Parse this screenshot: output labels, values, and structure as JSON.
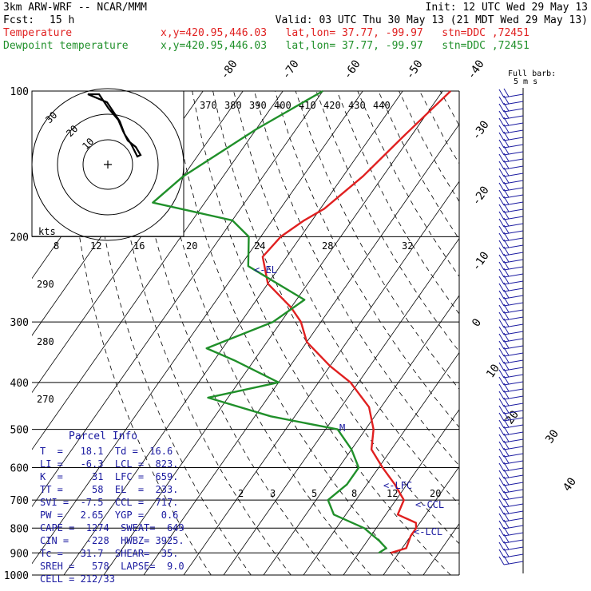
{
  "header": {
    "model": "3km ARW-WRF -- NCAR/MMM",
    "init": "Init: 12 UTC Wed 29 May 13",
    "fcst_label": "Fcst:",
    "fcst_value": "15 h",
    "valid": "Valid: 03 UTC Thu 30 May 13 (21 MDT Wed 29 May 13)",
    "temp_label": "Temperature",
    "temp_loc": "x,y=420.95,446.03   lat,lon= 37.77, -99.97   stn=DDC ,72451",
    "dew_label": "Dewpoint temperature",
    "dew_loc": "x,y=420.95,446.03   lat,lon= 37.77, -99.97   stn=DDC ,72451"
  },
  "colors": {
    "temperature": "#e02020",
    "dewpoint": "#20902a",
    "labels": "#1a1aa0",
    "grid": "#000000"
  },
  "chart_data": {
    "type": "line",
    "subtype": "skew-T log-P sounding",
    "pressure_axis": {
      "ticks": [
        100,
        200,
        300,
        400,
        500,
        600,
        700,
        800,
        900,
        1000
      ],
      "scale": "log"
    },
    "isotherm_labels": [
      "-80",
      "-70",
      "-60",
      "-50",
      "-40",
      "-30",
      "-20",
      "-10",
      "0",
      "10",
      "20",
      "30",
      "40"
    ],
    "theta_e_labels": [
      "370",
      "380",
      "390",
      "400",
      "410",
      "420",
      "430",
      "440"
    ],
    "theta_labels": [
      "290",
      "280",
      "270"
    ],
    "mixing_ratio_labels": [
      "2",
      "3",
      "5",
      "8",
      "12",
      "20"
    ],
    "hodograph": {
      "unit": "kts",
      "ring_labels": [
        "30",
        "20",
        "10"
      ],
      "speed_ticks": [
        "8",
        "12",
        "16",
        "20",
        "24",
        "28",
        "32"
      ]
    },
    "full_barb_note": [
      "Full barb:",
      "5 m s"
    ],
    "annotations": [
      "<-EL",
      "<-LFC",
      "<-CCL",
      "<-LCL",
      "M"
    ],
    "series": [
      {
        "name": "Temperature",
        "points": [
          [
            100,
            -48
          ],
          [
            125,
            -52
          ],
          [
            150,
            -55
          ],
          [
            175,
            -59
          ],
          [
            185,
            -62
          ],
          [
            200,
            -65
          ],
          [
            220,
            -66
          ],
          [
            250,
            -60
          ],
          [
            280,
            -50
          ],
          [
            300,
            -45
          ],
          [
            330,
            -40
          ],
          [
            370,
            -30
          ],
          [
            400,
            -22
          ],
          [
            450,
            -13
          ],
          [
            500,
            -8
          ],
          [
            550,
            -5
          ],
          [
            600,
            1
          ],
          [
            650,
            7
          ],
          [
            700,
            12
          ],
          [
            750,
            13
          ],
          [
            780,
            19
          ],
          [
            800,
            20
          ],
          [
            830,
            20
          ],
          [
            880,
            21
          ],
          [
            900,
            18
          ]
        ]
      },
      {
        "name": "Dewpoint temperature",
        "points": [
          [
            100,
            -80
          ],
          [
            120,
            -90
          ],
          [
            150,
            -100
          ],
          [
            170,
            -103
          ],
          [
            185,
            -80
          ],
          [
            200,
            -73
          ],
          [
            230,
            -68
          ],
          [
            270,
            -48
          ],
          [
            300,
            -52
          ],
          [
            340,
            -64
          ],
          [
            360,
            -55
          ],
          [
            400,
            -40
          ],
          [
            430,
            -55
          ],
          [
            470,
            -36
          ],
          [
            500,
            -17
          ],
          [
            550,
            -10
          ],
          [
            600,
            -5
          ],
          [
            650,
            -5
          ],
          [
            700,
            -7
          ],
          [
            750,
            -3
          ],
          [
            800,
            7
          ],
          [
            850,
            13
          ],
          [
            880,
            16
          ],
          [
            900,
            15
          ]
        ]
      }
    ]
  },
  "parcel_info": {
    "title": "Parcel Info",
    "rows": [
      "T  =   18.1  Td =  16.6",
      "LI =   -6.3  LCL =  823.",
      "K  =     31  LFC =  659.",
      "TT =     58  EL  =  233.",
      "SVI =  -7.5  CCL =  717.",
      "PW =   2.65  YGP =   0.6",
      "CAPE =  1274  SWEAT=  649",
      "CIN =   -228  HWBZ= 3925.",
      "Tc =   31.7  SHEAR=  35.",
      "SREH =   578  LAPSE=  9.0",
      "CELL = 212/33"
    ]
  }
}
